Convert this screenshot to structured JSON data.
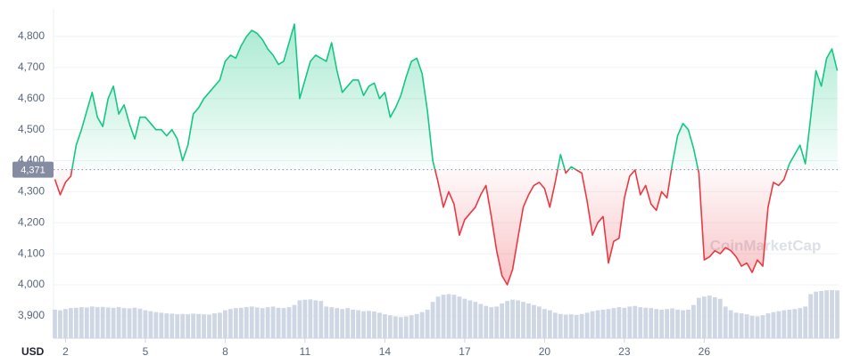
{
  "chart_data": {
    "type": "line",
    "x": [
      1.6,
      1.8,
      2,
      2.2,
      2.4,
      2.6,
      2.8,
      3,
      3.2,
      3.4,
      3.6,
      3.8,
      4,
      4.2,
      4.4,
      4.6,
      4.8,
      5,
      5.2,
      5.4,
      5.6,
      5.8,
      6,
      6.2,
      6.4,
      6.6,
      6.8,
      7,
      7.2,
      7.4,
      7.6,
      7.8,
      8,
      8.2,
      8.4,
      8.6,
      8.8,
      9,
      9.2,
      9.4,
      9.6,
      9.8,
      10,
      10.2,
      10.4,
      10.6,
      10.8,
      11,
      11.2,
      11.4,
      11.6,
      11.8,
      12,
      12.2,
      12.4,
      12.6,
      12.8,
      13,
      13.2,
      13.4,
      13.6,
      13.8,
      14,
      14.2,
      14.4,
      14.6,
      14.8,
      15,
      15.2,
      15.4,
      15.6,
      15.8,
      16,
      16.2,
      16.4,
      16.6,
      16.8,
      17,
      17.2,
      17.4,
      17.6,
      17.8,
      18,
      18.2,
      18.4,
      18.6,
      18.8,
      19,
      19.2,
      19.4,
      19.6,
      19.8,
      20,
      20.2,
      20.4,
      20.6,
      20.8,
      21,
      21.2,
      21.4,
      21.6,
      21.8,
      22,
      22.2,
      22.4,
      22.6,
      22.8,
      23,
      23.2,
      23.4,
      23.6,
      23.8,
      24,
      24.2,
      24.4,
      24.6,
      24.8,
      25,
      25.2,
      25.4,
      25.6,
      25.8,
      26,
      26.2,
      26.4,
      26.6,
      26.8,
      27,
      27.2,
      27.4,
      27.6,
      27.8,
      28,
      28.2,
      28.4,
      28.6,
      28.8,
      29,
      29.2,
      29.4,
      29.6,
      29.8,
      30,
      30.2,
      30.4,
      30.6,
      30.8,
      31
    ],
    "price": {
      "values": [
        4340,
        4290,
        4330,
        4350,
        4450,
        4500,
        4560,
        4620,
        4540,
        4510,
        4600,
        4640,
        4550,
        4580,
        4520,
        4470,
        4540,
        4540,
        4520,
        4500,
        4500,
        4480,
        4500,
        4470,
        4400,
        4450,
        4550,
        4570,
        4600,
        4620,
        4640,
        4660,
        4720,
        4740,
        4730,
        4770,
        4800,
        4820,
        4810,
        4790,
        4760,
        4740,
        4710,
        4720,
        4780,
        4840,
        4600,
        4660,
        4720,
        4740,
        4730,
        4720,
        4780,
        4690,
        4620,
        4640,
        4660,
        4660,
        4610,
        4640,
        4650,
        4600,
        4620,
        4540,
        4570,
        4610,
        4670,
        4720,
        4730,
        4680,
        4560,
        4400,
        4330,
        4250,
        4300,
        4260,
        4160,
        4210,
        4230,
        4250,
        4290,
        4320,
        4220,
        4110,
        4030,
        4000,
        4050,
        4150,
        4250,
        4290,
        4320,
        4330,
        4310,
        4250,
        4330,
        4420,
        4360,
        4380,
        4370,
        4360,
        4270,
        4160,
        4200,
        4220,
        4070,
        4140,
        4150,
        4280,
        4350,
        4370,
        4290,
        4320,
        4260,
        4240,
        4300,
        4280,
        4390,
        4480,
        4520,
        4500,
        4440,
        4360,
        4080,
        4090,
        4110,
        4100,
        4120,
        4110,
        4090,
        4060,
        4070,
        4040,
        4080,
        4060,
        4250,
        4330,
        4320,
        4340,
        4390,
        4420,
        4450,
        4390,
        4540,
        4690,
        4640,
        4730,
        4760,
        4690
      ]
    },
    "volume": {
      "color": "#cfd6e4",
      "values": [
        3920,
        3918,
        3922,
        3925,
        3926,
        3928,
        3927,
        3930,
        3928,
        3929,
        3927,
        3926,
        3928,
        3925,
        3924,
        3926,
        3923,
        3918,
        3915,
        3912,
        3910,
        3908,
        3907,
        3905,
        3906,
        3905,
        3907,
        3906,
        3905,
        3904,
        3908,
        3910,
        3918,
        3922,
        3925,
        3926,
        3928,
        3930,
        3927,
        3925,
        3928,
        3930,
        3926,
        3925,
        3928,
        3935,
        3950,
        3952,
        3953,
        3950,
        3948,
        3930,
        3928,
        3925,
        3922,
        3925,
        3920,
        3918,
        3915,
        3916,
        3914,
        3910,
        3905,
        3902,
        3898,
        3896,
        3898,
        3902,
        3906,
        3912,
        3920,
        3945,
        3962,
        3968,
        3970,
        3968,
        3962,
        3955,
        3950,
        3945,
        3938,
        3932,
        3928,
        3930,
        3940,
        3948,
        3952,
        3950,
        3945,
        3940,
        3935,
        3930,
        3922,
        3918,
        3910,
        3906,
        3904,
        3905,
        3903,
        3906,
        3910,
        3915,
        3918,
        3920,
        3922,
        3925,
        3928,
        3926,
        3930,
        3932,
        3928,
        3926,
        3925,
        3922,
        3920,
        3922,
        3924,
        3920,
        3918,
        3920,
        3935,
        3958,
        3962,
        3965,
        3960,
        3955,
        3930,
        3918,
        3910,
        3908,
        3905,
        3900,
        3898,
        3902,
        3908,
        3912,
        3915,
        3918,
        3920,
        3922,
        3925,
        3930,
        3970,
        3978,
        3980,
        3982,
        3983,
        3982
      ]
    },
    "baseline": {
      "value": 4371,
      "label": "4,371"
    },
    "up_color": "#16c784",
    "down_color": "#ea3943",
    "xlim": [
      1.55,
      31.05
    ],
    "xticks": [
      2,
      5,
      8,
      11,
      14,
      17,
      20,
      23,
      26
    ],
    "ylim": [
      3828,
      4889
    ],
    "yticks": [
      {
        "value": 3900,
        "label": "3,900"
      },
      {
        "value": 4000,
        "label": "4,000"
      },
      {
        "value": 4100,
        "label": "4,100"
      },
      {
        "value": 4200,
        "label": "4,200"
      },
      {
        "value": 4300,
        "label": "4,300"
      },
      {
        "value": 4400,
        "label": "4,400"
      },
      {
        "value": 4500,
        "label": "4,500"
      },
      {
        "value": 4600,
        "label": "4,600"
      },
      {
        "value": 4700,
        "label": "4,700"
      },
      {
        "value": 4800,
        "label": "4,800"
      }
    ],
    "grid": true,
    "currency": "USD",
    "watermark": "CoinMarketCap"
  }
}
